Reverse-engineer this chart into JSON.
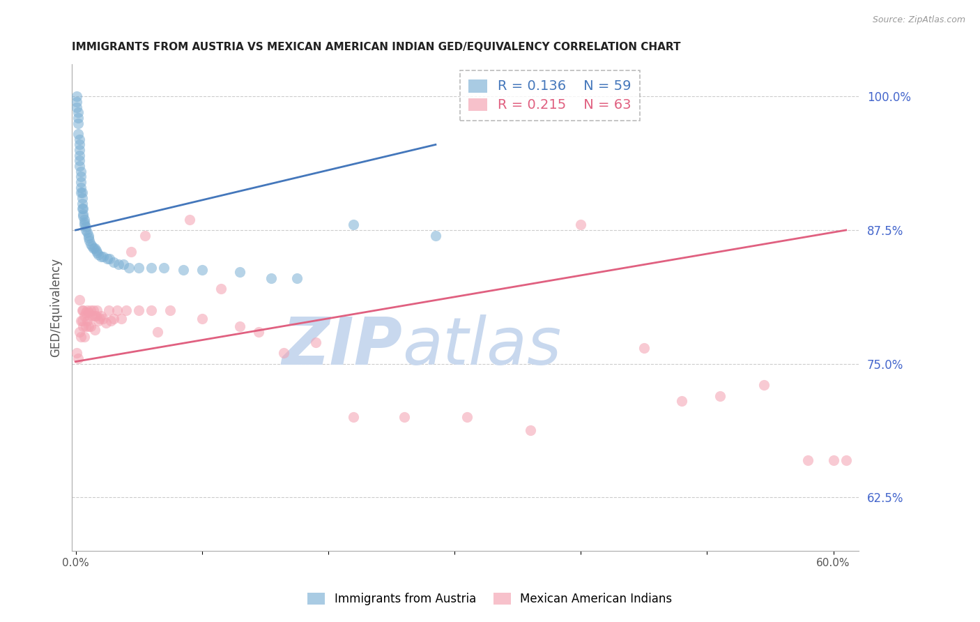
{
  "title": "IMMIGRANTS FROM AUSTRIA VS MEXICAN AMERICAN INDIAN GED/EQUIVALENCY CORRELATION CHART",
  "source": "Source: ZipAtlas.com",
  "ylabel": "GED/Equivalency",
  "right_ytick_labels": [
    "100.0%",
    "87.5%",
    "75.0%",
    "62.5%"
  ],
  "right_ytick_values": [
    1.0,
    0.875,
    0.75,
    0.625
  ],
  "y_min": 0.575,
  "y_max": 1.03,
  "x_min": -0.003,
  "x_max": 0.62,
  "legend_r1": "R = 0.136",
  "legend_n1": "N = 59",
  "legend_r2": "R = 0.215",
  "legend_n2": "N = 63",
  "blue_color": "#7BAFD4",
  "pink_color": "#F4A0B0",
  "blue_line_color": "#4477BB",
  "pink_line_color": "#E06080",
  "watermark_zip": "ZIP",
  "watermark_atlas": "atlas",
  "watermark_color": "#C8D8EE",
  "grid_color": "#CCCCCC",
  "blue_scatter_x": [
    0.001,
    0.001,
    0.001,
    0.002,
    0.002,
    0.002,
    0.002,
    0.003,
    0.003,
    0.003,
    0.003,
    0.003,
    0.003,
    0.004,
    0.004,
    0.004,
    0.004,
    0.004,
    0.005,
    0.005,
    0.005,
    0.005,
    0.006,
    0.006,
    0.006,
    0.007,
    0.007,
    0.007,
    0.008,
    0.008,
    0.009,
    0.01,
    0.01,
    0.011,
    0.012,
    0.013,
    0.014,
    0.015,
    0.016,
    0.017,
    0.018,
    0.02,
    0.022,
    0.025,
    0.027,
    0.03,
    0.034,
    0.038,
    0.042,
    0.05,
    0.06,
    0.07,
    0.085,
    0.1,
    0.13,
    0.155,
    0.175,
    0.22,
    0.285
  ],
  "blue_scatter_y": [
    1.0,
    0.995,
    0.99,
    0.985,
    0.98,
    0.975,
    0.965,
    0.96,
    0.955,
    0.95,
    0.945,
    0.94,
    0.935,
    0.93,
    0.925,
    0.92,
    0.915,
    0.91,
    0.91,
    0.905,
    0.9,
    0.895,
    0.895,
    0.89,
    0.888,
    0.885,
    0.882,
    0.88,
    0.878,
    0.875,
    0.873,
    0.87,
    0.868,
    0.865,
    0.862,
    0.86,
    0.858,
    0.858,
    0.856,
    0.854,
    0.852,
    0.85,
    0.85,
    0.848,
    0.848,
    0.845,
    0.843,
    0.843,
    0.84,
    0.84,
    0.84,
    0.84,
    0.838,
    0.838,
    0.836,
    0.83,
    0.83,
    0.88,
    0.87
  ],
  "pink_scatter_x": [
    0.001,
    0.002,
    0.003,
    0.003,
    0.004,
    0.004,
    0.005,
    0.005,
    0.006,
    0.006,
    0.007,
    0.007,
    0.008,
    0.008,
    0.009,
    0.009,
    0.01,
    0.01,
    0.011,
    0.012,
    0.012,
    0.013,
    0.014,
    0.015,
    0.015,
    0.016,
    0.017,
    0.018,
    0.019,
    0.02,
    0.022,
    0.024,
    0.026,
    0.028,
    0.03,
    0.033,
    0.036,
    0.04,
    0.044,
    0.05,
    0.055,
    0.06,
    0.065,
    0.075,
    0.09,
    0.1,
    0.115,
    0.13,
    0.145,
    0.165,
    0.19,
    0.22,
    0.26,
    0.31,
    0.36,
    0.4,
    0.45,
    0.48,
    0.51,
    0.545,
    0.58,
    0.6,
    0.61
  ],
  "pink_scatter_y": [
    0.76,
    0.755,
    0.81,
    0.78,
    0.79,
    0.775,
    0.8,
    0.79,
    0.8,
    0.785,
    0.795,
    0.775,
    0.798,
    0.785,
    0.8,
    0.79,
    0.798,
    0.785,
    0.795,
    0.8,
    0.785,
    0.795,
    0.8,
    0.795,
    0.782,
    0.795,
    0.8,
    0.79,
    0.792,
    0.795,
    0.792,
    0.788,
    0.8,
    0.79,
    0.792,
    0.8,
    0.792,
    0.8,
    0.855,
    0.8,
    0.87,
    0.8,
    0.78,
    0.8,
    0.885,
    0.792,
    0.82,
    0.785,
    0.78,
    0.76,
    0.77,
    0.7,
    0.7,
    0.7,
    0.688,
    0.88,
    0.765,
    0.715,
    0.72,
    0.73,
    0.66,
    0.66,
    0.66
  ],
  "blue_trend_x0": 0.0,
  "blue_trend_x1": 0.285,
  "blue_trend_y0": 0.875,
  "blue_trend_y1": 0.955,
  "pink_trend_x0": 0.0,
  "pink_trend_x1": 0.61,
  "pink_trend_y0": 0.752,
  "pink_trend_y1": 0.875
}
